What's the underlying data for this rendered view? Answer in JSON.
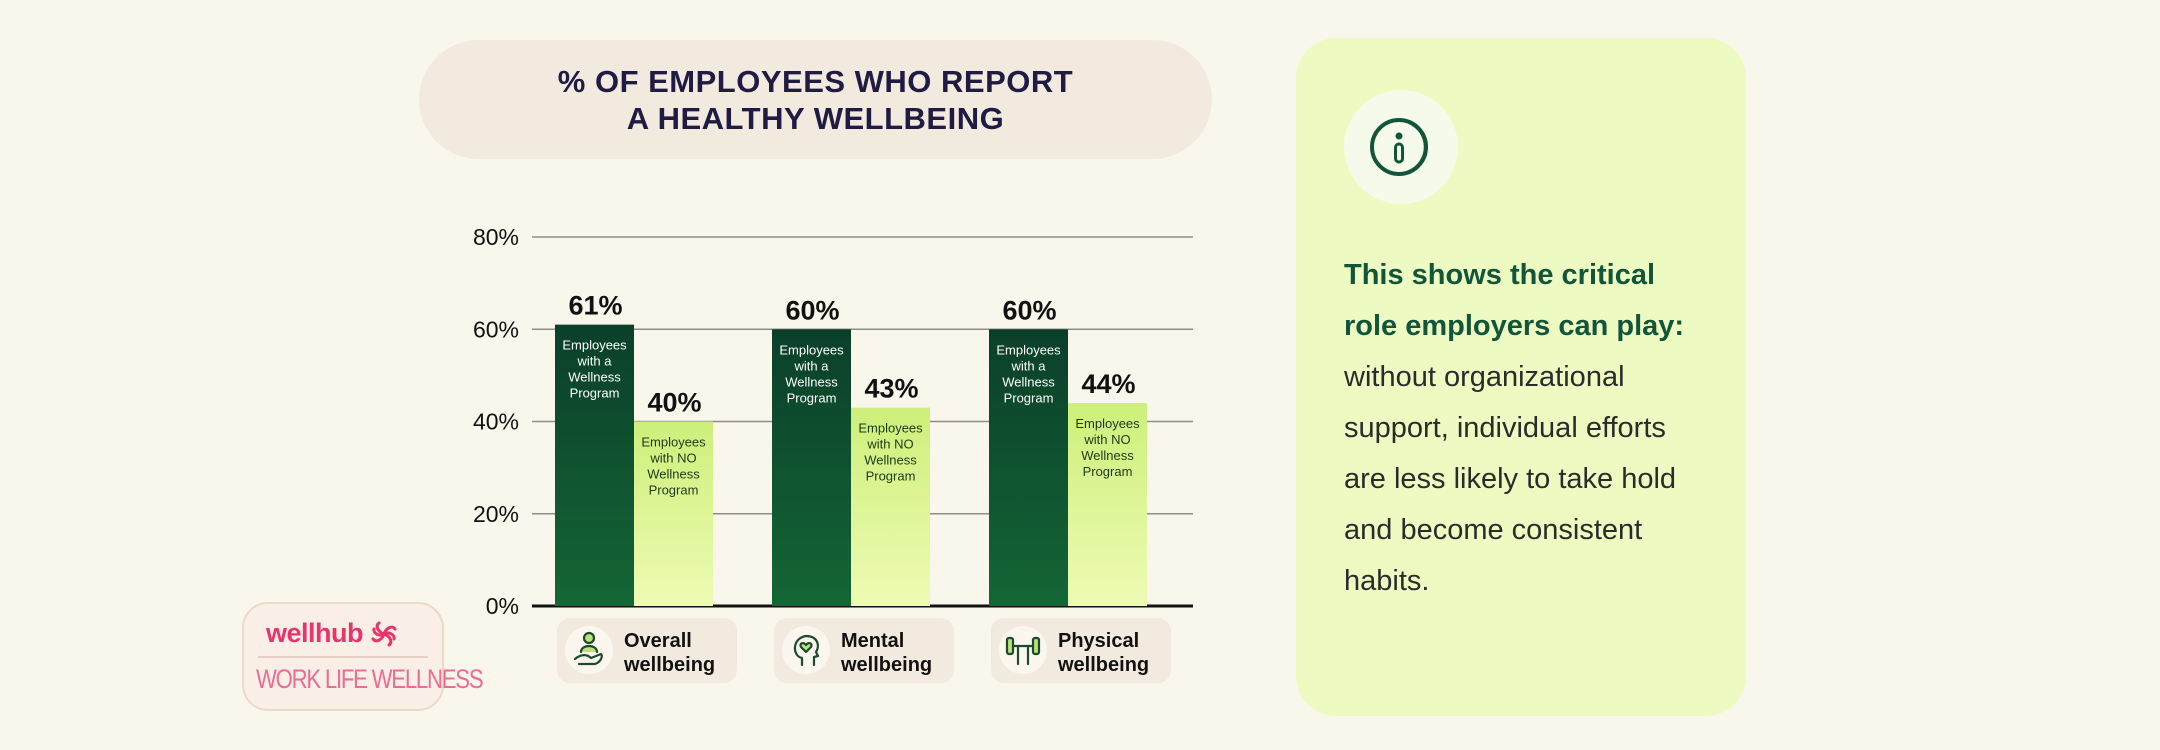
{
  "title_line1": "% OF EMPLOYEES WHO REPORT",
  "title_line2": "A HEALTHY WELLBEING",
  "colors": {
    "with_top": "#0b3f2a",
    "with_bottom": "#146636",
    "without_top": "#cdef7a",
    "without_bottom": "#eefbb4",
    "label_pill": "#f3eadf"
  },
  "chart_data": {
    "type": "bar",
    "title": "% OF EMPLOYEES WHO REPORT A HEALTHY WELLBEING",
    "categories": [
      "Overall wellbeing",
      "Mental wellbeing",
      "Physical wellbeing"
    ],
    "category_lines": [
      [
        "Overall",
        "wellbeing"
      ],
      [
        "Mental",
        "wellbeing"
      ],
      [
        "Physical",
        "wellbeing"
      ]
    ],
    "category_icons": [
      "heart-in-hand-icon",
      "head-heart-icon",
      "dumbbell-icon"
    ],
    "series": [
      {
        "name": "Employees with a Wellness Program",
        "label_lines": [
          "Employees",
          "with a",
          "Wellness",
          "Program"
        ],
        "values": [
          61,
          60,
          60
        ]
      },
      {
        "name": "Employees with NO Wellness Program",
        "label_lines": [
          "Employees",
          "with NO",
          "Wellness",
          "Program"
        ],
        "values": [
          40,
          43,
          44
        ]
      }
    ],
    "value_labels": [
      [
        "61%",
        "60%",
        "60%"
      ],
      [
        "40%",
        "43%",
        "44%"
      ]
    ],
    "yticks": [
      "0%",
      "20%",
      "40%",
      "60%",
      "80%"
    ],
    "ylim": [
      0,
      80
    ],
    "grid": true
  },
  "info": {
    "highlight_line1": "This shows the critical",
    "highlight_line2": "role employers can play:",
    "lines": [
      "without organizational",
      "support, individual efforts",
      "are less likely to take hold",
      "and become consistent",
      "habits."
    ]
  },
  "logo": {
    "brand": "wellhub",
    "sub": "WORK LIFE WELLNESS"
  }
}
